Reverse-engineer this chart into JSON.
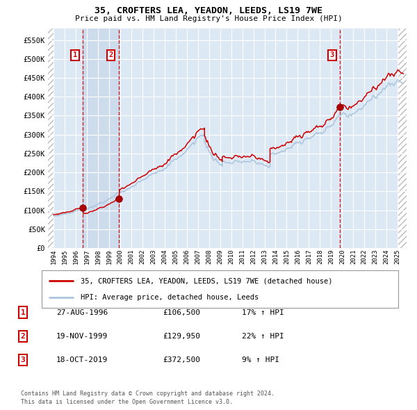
{
  "title1": "35, CROFTERS LEA, YEADON, LEEDS, LS19 7WE",
  "title2": "Price paid vs. HM Land Registry's House Price Index (HPI)",
  "ylim": [
    0,
    580000
  ],
  "xlim_start": 1993.5,
  "xlim_end": 2025.8,
  "yticks": [
    0,
    50000,
    100000,
    150000,
    200000,
    250000,
    300000,
    350000,
    400000,
    450000,
    500000,
    550000
  ],
  "ytick_labels": [
    "£0",
    "£50K",
    "£100K",
    "£150K",
    "£200K",
    "£250K",
    "£300K",
    "£350K",
    "£400K",
    "£450K",
    "£500K",
    "£550K"
  ],
  "sale_dates": [
    1996.65,
    1999.88,
    2019.79
  ],
  "sale_prices": [
    106500,
    129950,
    372500
  ],
  "sale_labels": [
    "1",
    "2",
    "3"
  ],
  "vline_color": "#cc0000",
  "hpi_color": "#aac4dd",
  "price_color": "#cc0000",
  "marker_color": "#aa0000",
  "bg_color": "#dce9f5",
  "span_color": "#cddcec",
  "legend_line1": "35, CROFTERS LEA, YEADON, LEEDS, LS19 7WE (detached house)",
  "legend_line2": "HPI: Average price, detached house, Leeds",
  "table_rows": [
    [
      "1",
      "27-AUG-1996",
      "£106,500",
      "17% ↑ HPI"
    ],
    [
      "2",
      "19-NOV-1999",
      "£129,950",
      "22% ↑ HPI"
    ],
    [
      "3",
      "18-OCT-2019",
      "£372,500",
      "9% ↑ HPI"
    ]
  ],
  "footnote1": "Contains HM Land Registry data © Crown copyright and database right 2024.",
  "footnote2": "This data is licensed under the Open Government Licence v3.0."
}
